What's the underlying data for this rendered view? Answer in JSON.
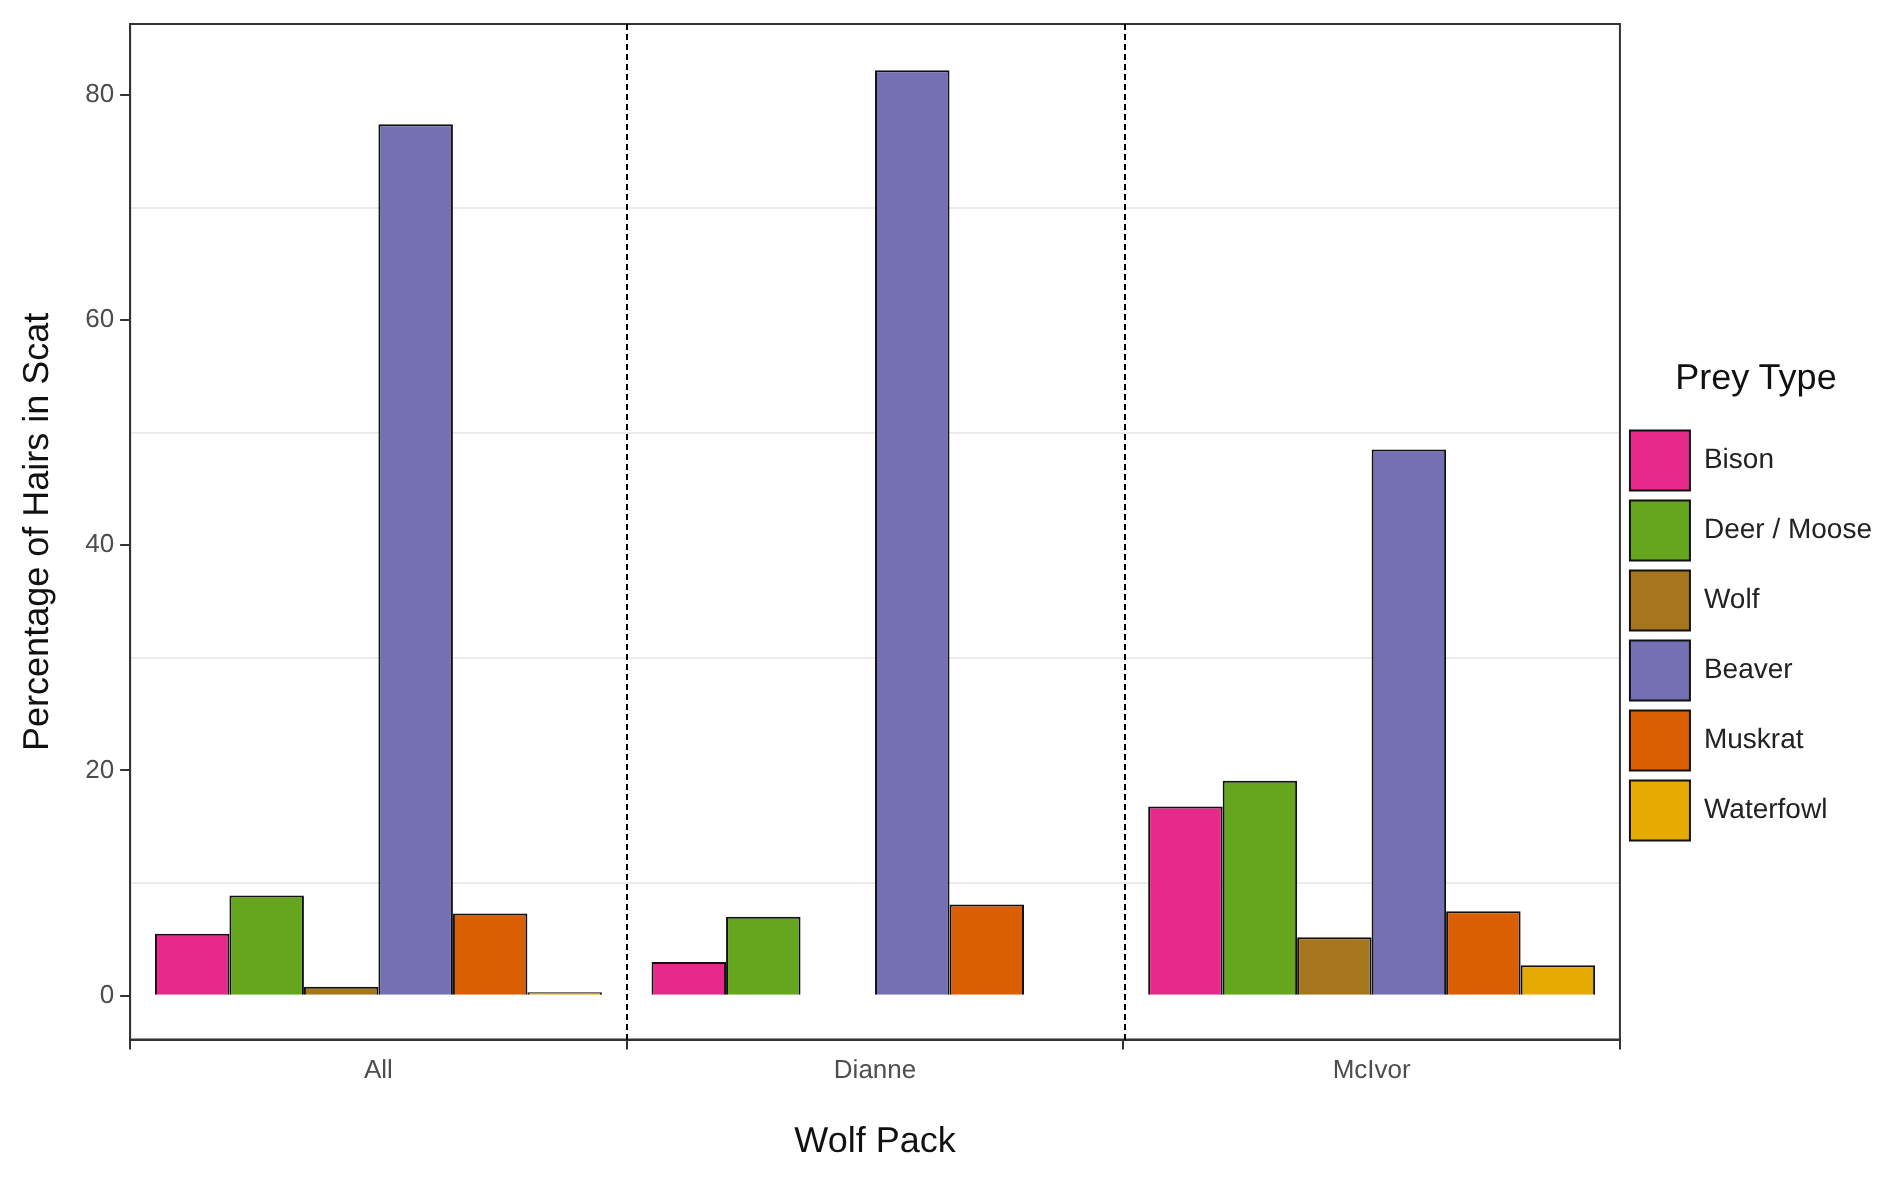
{
  "chart_data": {
    "type": "bar",
    "xlabel": "Wolf Pack",
    "ylabel": "Percentage of Hairs in Scat",
    "legend_title": "Prey Type",
    "categories": [
      "All",
      "Dianne",
      "McIvor"
    ],
    "series": [
      {
        "name": "Bison",
        "color": "#e7298a",
        "values": [
          5.5,
          3.0,
          16.8
        ]
      },
      {
        "name": "Deer / Moose",
        "color": "#66a61e",
        "values": [
          8.9,
          7.0,
          19.1
        ]
      },
      {
        "name": "Wolf",
        "color": "#a6761d",
        "values": [
          0.8,
          0,
          5.2
        ]
      },
      {
        "name": "Beaver",
        "color": "#7570b3",
        "values": [
          77.4,
          82.2,
          48.5
        ]
      },
      {
        "name": "Muskrat",
        "color": "#d95f02",
        "values": [
          7.3,
          8.1,
          7.5
        ]
      },
      {
        "name": "Waterfowl",
        "color": "#e6ab02",
        "values": [
          0.3,
          0,
          2.7
        ]
      }
    ],
    "ylim": [
      -3.9,
      86.3
    ],
    "yticks": [
      0,
      {
        "value": 10,
        "label": null
      },
      20,
      {
        "value": 30,
        "label": null
      },
      40,
      {
        "value": 50,
        "label": null
      },
      60,
      {
        "value": 70,
        "label": null
      },
      80
    ],
    "grid": "y",
    "legend": "right"
  }
}
